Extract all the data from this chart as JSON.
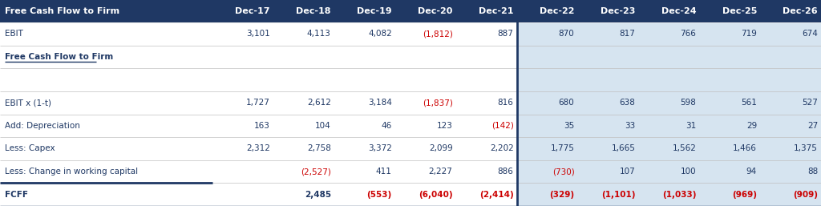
{
  "header_bg": "#1F3864",
  "header_text_color": "#FFFFFF",
  "row_label_color": "#1F3864",
  "negative_color": "#CC0000",
  "positive_color": "#1F3864",
  "projection_bg": "#D6E4F0",
  "white_bg": "#FFFFFF",
  "separator_line_color": "#1F3864",
  "grid_color": "#C0C0C0",
  "columns": [
    "Free Cash Flow to Firm",
    "Dec-17",
    "Dec-18",
    "Dec-19",
    "Dec-20",
    "Dec-21",
    "Dec-22",
    "Dec-23",
    "Dec-24",
    "Dec-25",
    "Dec-26"
  ],
  "rows": [
    {
      "label": "EBIT",
      "bold": false,
      "underline": false,
      "values": [
        "3,101",
        "4,113",
        "4,082",
        "(1,812)",
        "887",
        "870",
        "817",
        "766",
        "719",
        "674"
      ],
      "neg": [
        false,
        false,
        false,
        true,
        false,
        false,
        false,
        false,
        false,
        false
      ]
    },
    {
      "label": "Free Cash Flow to Firm",
      "bold": true,
      "underline": true,
      "values": [
        "",
        "",
        "",
        "",
        "",
        "",
        "",
        "",
        "",
        ""
      ],
      "neg": [
        false,
        false,
        false,
        false,
        false,
        false,
        false,
        false,
        false,
        false
      ]
    },
    {
      "label": "",
      "bold": false,
      "underline": false,
      "values": [
        "",
        "",
        "",
        "",
        "",
        "",
        "",
        "",
        "",
        ""
      ],
      "neg": [
        false,
        false,
        false,
        false,
        false,
        false,
        false,
        false,
        false,
        false
      ]
    },
    {
      "label": "EBIT x (1-t)",
      "bold": false,
      "underline": false,
      "values": [
        "1,727",
        "2,612",
        "3,184",
        "(1,837)",
        "816",
        "680",
        "638",
        "598",
        "561",
        "527"
      ],
      "neg": [
        false,
        false,
        false,
        true,
        false,
        false,
        false,
        false,
        false,
        false
      ]
    },
    {
      "label": "Add: Depreciation",
      "bold": false,
      "underline": false,
      "values": [
        "163",
        "104",
        "46",
        "123",
        "(142)",
        "35",
        "33",
        "31",
        "29",
        "27"
      ],
      "neg": [
        false,
        false,
        false,
        false,
        true,
        false,
        false,
        false,
        false,
        false
      ]
    },
    {
      "label": "Less: Capex",
      "bold": false,
      "underline": false,
      "values": [
        "2,312",
        "2,758",
        "3,372",
        "2,099",
        "2,202",
        "1,775",
        "1,665",
        "1,562",
        "1,466",
        "1,375"
      ],
      "neg": [
        false,
        false,
        false,
        false,
        false,
        false,
        false,
        false,
        false,
        false
      ]
    },
    {
      "label": "Less: Change in working capital",
      "bold": false,
      "underline": false,
      "values": [
        "",
        "(2,527)",
        "411",
        "2,227",
        "886",
        "(730)",
        "107",
        "100",
        "94",
        "88"
      ],
      "neg": [
        false,
        true,
        false,
        false,
        false,
        true,
        false,
        false,
        false,
        false
      ]
    },
    {
      "label": "FCFF",
      "bold": true,
      "underline": false,
      "values": [
        "",
        "2,485",
        "(553)",
        "(6,040)",
        "(2,414)",
        "(329)",
        "(1,101)",
        "(1,033)",
        "(969)",
        "(909)"
      ],
      "neg": [
        false,
        false,
        true,
        true,
        true,
        true,
        true,
        true,
        true,
        true
      ]
    }
  ]
}
